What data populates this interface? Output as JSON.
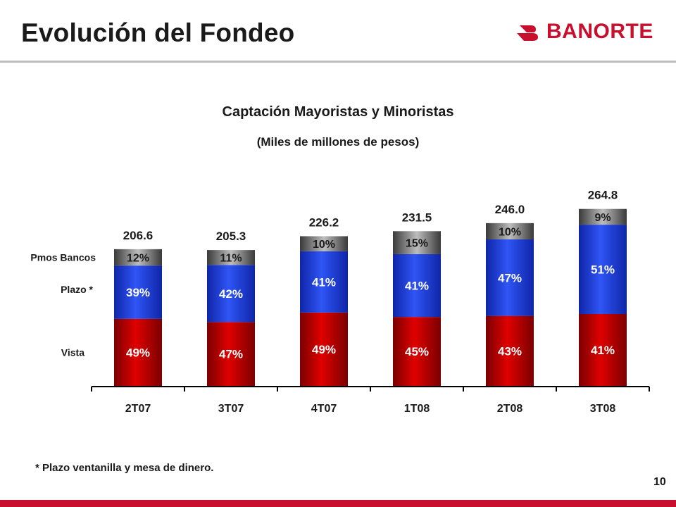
{
  "slide": {
    "title": "Evolución del Fondeo",
    "brand": "BANORTE",
    "footnote": "* Plazo ventanilla y mesa de dinero.",
    "page_number": "10"
  },
  "colors": {
    "brand_red": "#c8102e",
    "vista": "#d30000",
    "plazo": "#2242e0",
    "pmos_bancos": "#808080"
  },
  "chart_data": {
    "type": "bar",
    "stacked": true,
    "title": "Captación Mayoristas y Minoristas",
    "subtitle": "(Miles de millones de pesos)",
    "categories": [
      "2T07",
      "3T07",
      "4T07",
      "1T08",
      "2T08",
      "3T08"
    ],
    "totals": [
      206.6,
      205.3,
      226.2,
      231.5,
      246.0,
      264.8
    ],
    "total_labels": [
      "206.6",
      "205.3",
      "226.2",
      "231.5",
      "246.0",
      "264.8"
    ],
    "series": [
      {
        "name": "Vista",
        "percent": [
          49,
          47,
          49,
          45,
          43,
          41
        ],
        "labels": [
          "49%",
          "47%",
          "49%",
          "45%",
          "43%",
          "41%"
        ]
      },
      {
        "name": "Plazo *",
        "percent": [
          39,
          42,
          41,
          41,
          47,
          51
        ],
        "labels": [
          "39%",
          "42%",
          "41%",
          "41%",
          "47%",
          "51%"
        ]
      },
      {
        "name": "Pmos Bancos",
        "percent": [
          12,
          11,
          10,
          15,
          10,
          9
        ],
        "labels": [
          "12%",
          "11%",
          "10%",
          "15%",
          "10%",
          "9%"
        ]
      }
    ],
    "legend_placement": "left",
    "grid": false
  }
}
